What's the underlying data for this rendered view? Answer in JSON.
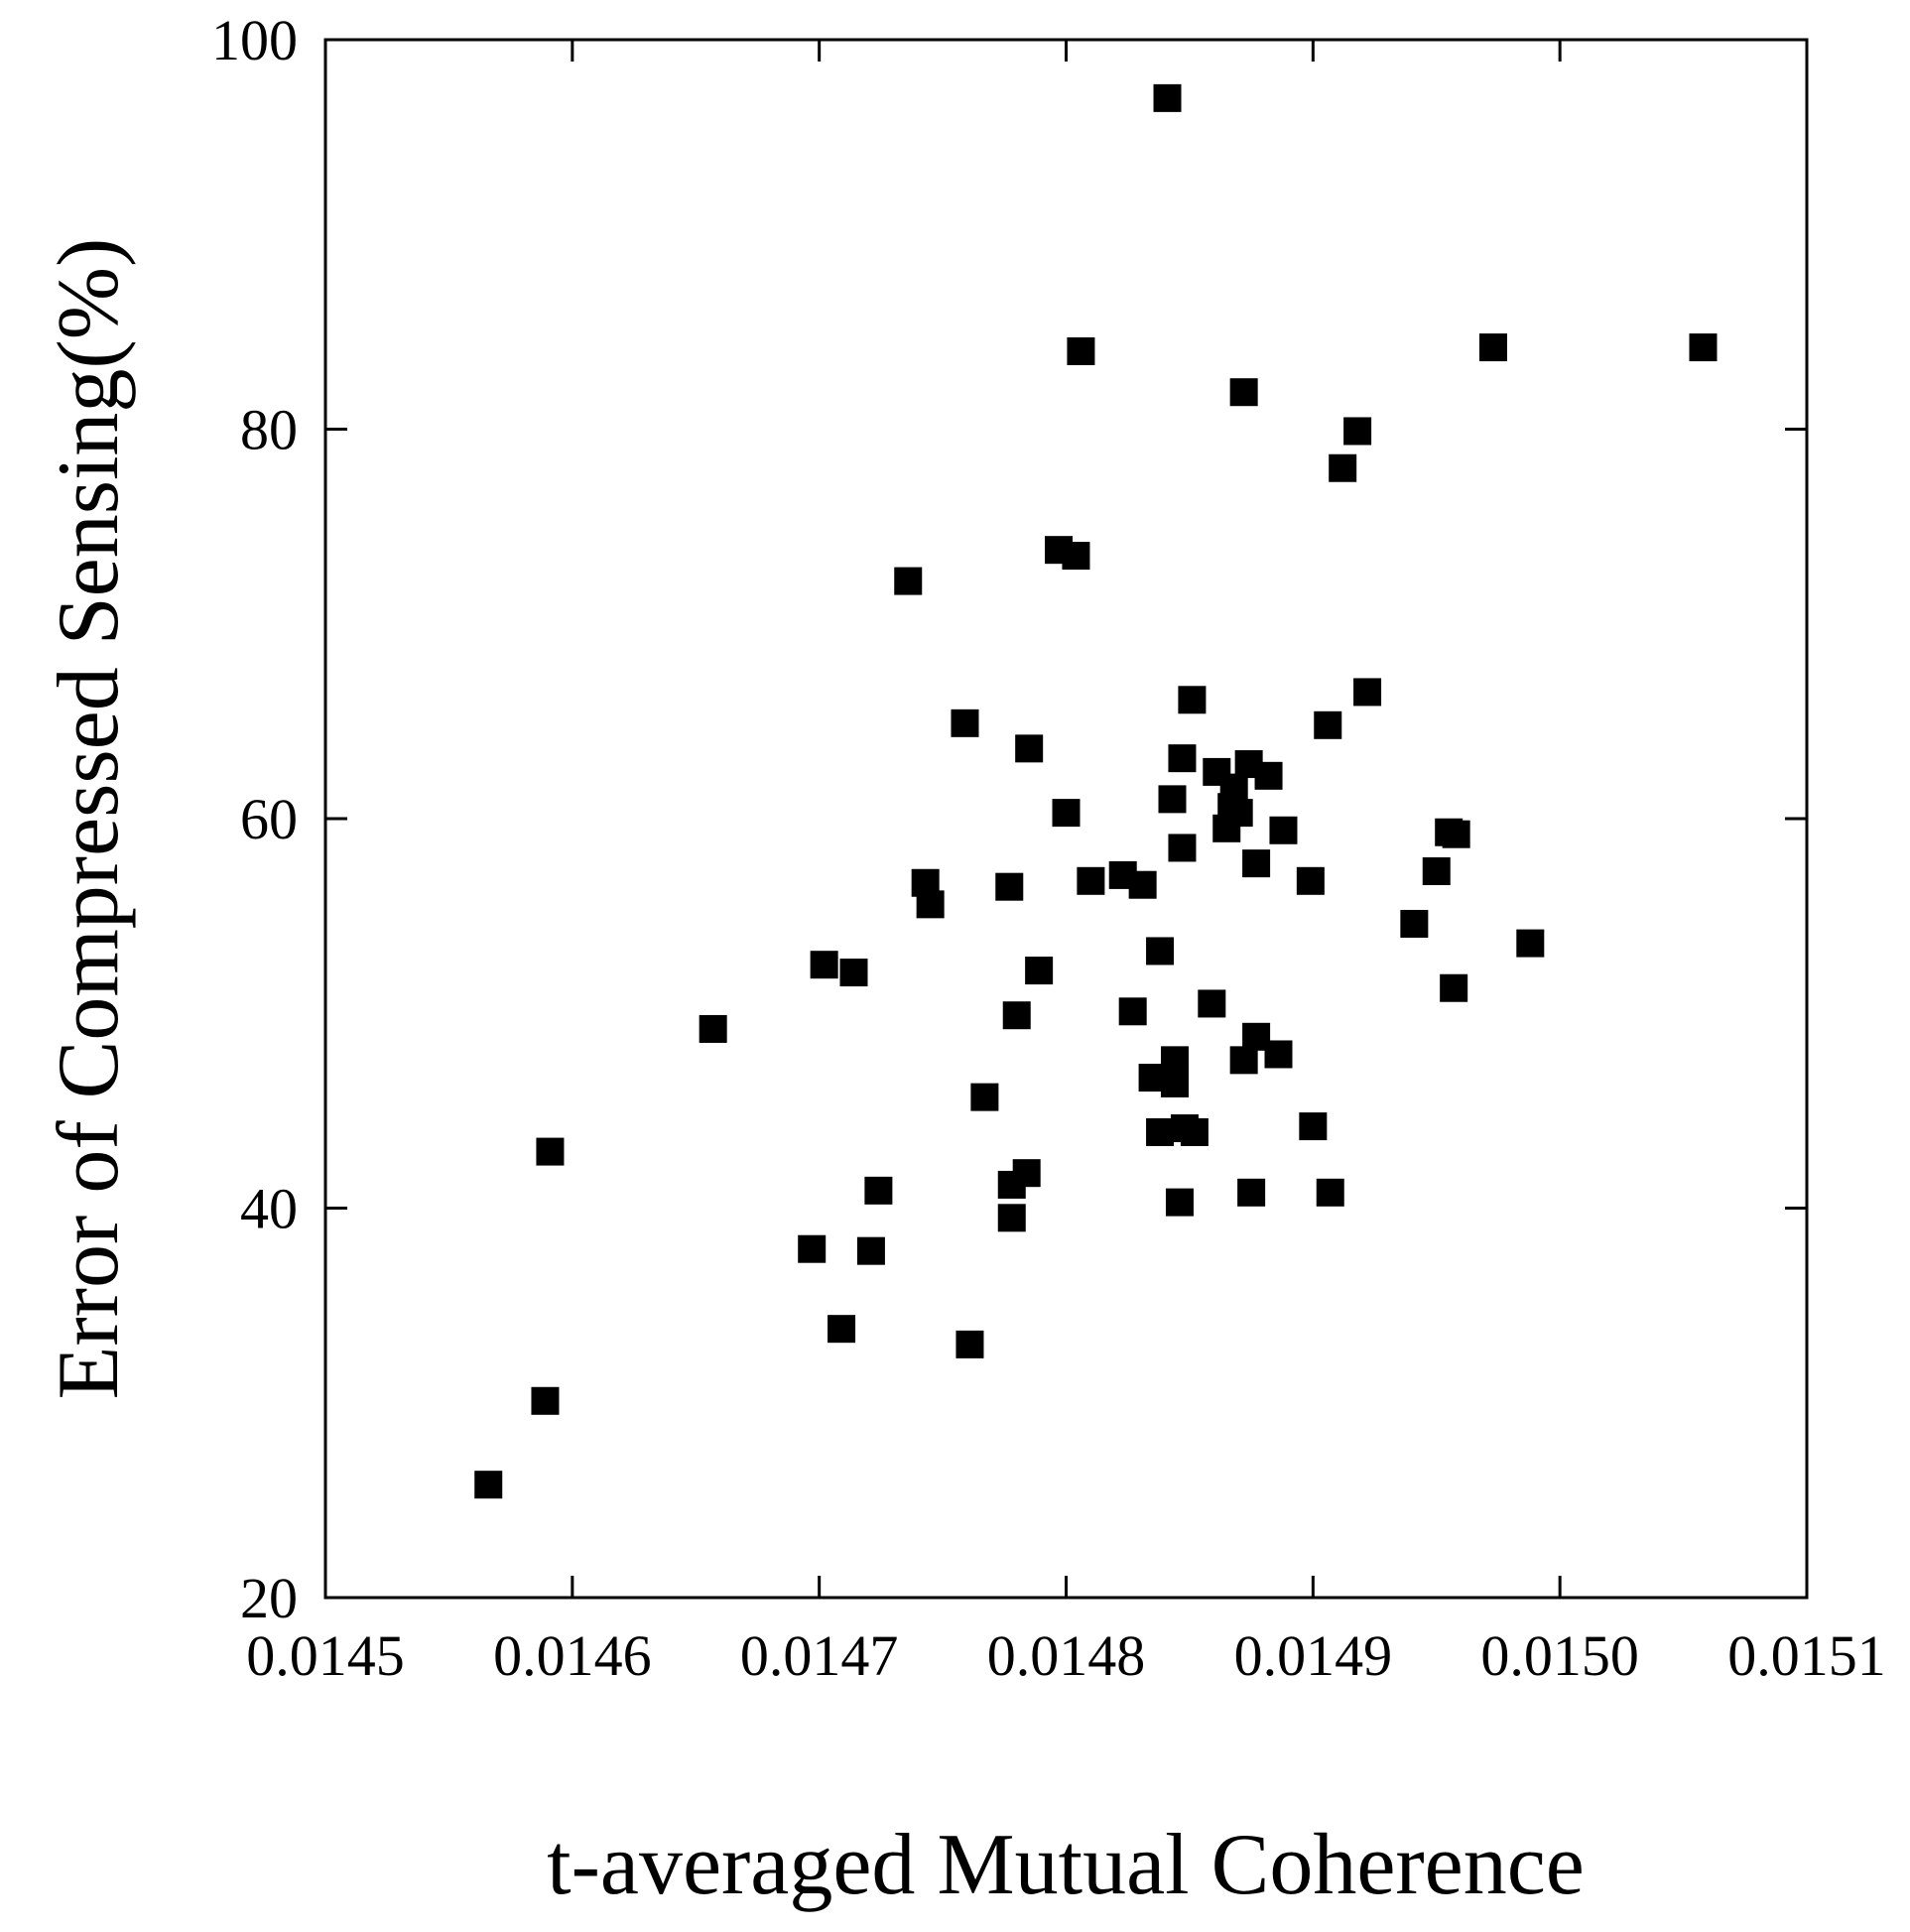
{
  "chart_data": {
    "type": "scatter",
    "xlabel": "t-averaged Mutual Coherence",
    "ylabel": "Error of Compressed Sensing(%)",
    "xlim": [
      0.0145,
      0.0151
    ],
    "ylim": [
      20,
      100
    ],
    "x_ticks": [
      "0.0145",
      "0.0146",
      "0.0147",
      "0.0148",
      "0.0149",
      "0.0150",
      "0.0151"
    ],
    "y_ticks": [
      "20",
      "40",
      "60",
      "80",
      "100"
    ],
    "marker": "square",
    "color": "#000000",
    "grid": false,
    "legend": "none",
    "series": [
      {
        "points": [
          [
            0.014566,
            25.8
          ],
          [
            0.014589,
            30.1
          ],
          [
            0.014591,
            42.9
          ],
          [
            0.014657,
            49.2
          ],
          [
            0.014697,
            37.9
          ],
          [
            0.014702,
            52.5
          ],
          [
            0.014709,
            33.8
          ],
          [
            0.014714,
            52.1
          ],
          [
            0.014721,
            37.8
          ],
          [
            0.014724,
            40.9
          ],
          [
            0.014736,
            72.2
          ],
          [
            0.014743,
            56.7
          ],
          [
            0.014745,
            55.6
          ],
          [
            0.014759,
            64.9
          ],
          [
            0.014761,
            33.0
          ],
          [
            0.014767,
            45.7
          ],
          [
            0.014777,
            56.5
          ],
          [
            0.014778,
            41.2
          ],
          [
            0.014778,
            39.5
          ],
          [
            0.01478,
            49.9
          ],
          [
            0.014784,
            41.8
          ],
          [
            0.014785,
            63.6
          ],
          [
            0.014789,
            52.2
          ],
          [
            0.014797,
            73.8
          ],
          [
            0.0148,
            60.3
          ],
          [
            0.014804,
            73.5
          ],
          [
            0.014806,
            84.0
          ],
          [
            0.01481,
            56.8
          ],
          [
            0.014823,
            57.1
          ],
          [
            0.014827,
            50.1
          ],
          [
            0.014831,
            56.6
          ],
          [
            0.014835,
            46.7
          ],
          [
            0.014838,
            53.2
          ],
          [
            0.014838,
            43.9
          ],
          [
            0.014841,
            97.0
          ],
          [
            0.014843,
            61.0
          ],
          [
            0.014844,
            47.6
          ],
          [
            0.014844,
            46.4
          ],
          [
            0.014846,
            40.3
          ],
          [
            0.014847,
            58.5
          ],
          [
            0.014847,
            63.1
          ],
          [
            0.014848,
            44.1
          ],
          [
            0.014852,
            43.9
          ],
          [
            0.014851,
            66.1
          ],
          [
            0.014859,
            50.5
          ],
          [
            0.014861,
            62.4
          ],
          [
            0.014865,
            59.5
          ],
          [
            0.014867,
            60.6
          ],
          [
            0.014868,
            61.6
          ],
          [
            0.01487,
            60.3
          ],
          [
            0.014872,
            81.9
          ],
          [
            0.014872,
            47.6
          ],
          [
            0.014874,
            62.8
          ],
          [
            0.014875,
            40.8
          ],
          [
            0.014877,
            57.7
          ],
          [
            0.014877,
            48.8
          ],
          [
            0.014882,
            62.2
          ],
          [
            0.014886,
            47.9
          ],
          [
            0.014888,
            59.4
          ],
          [
            0.014899,
            56.8
          ],
          [
            0.0149,
            44.2
          ],
          [
            0.014906,
            64.8
          ],
          [
            0.014907,
            40.8
          ],
          [
            0.014912,
            78.0
          ],
          [
            0.014918,
            79.9
          ],
          [
            0.014922,
            66.5
          ],
          [
            0.014941,
            54.6
          ],
          [
            0.01495,
            57.3
          ],
          [
            0.014955,
            59.3
          ],
          [
            0.014957,
            51.3
          ],
          [
            0.014958,
            59.2
          ],
          [
            0.014973,
            84.2
          ],
          [
            0.014988,
            53.6
          ],
          [
            0.015058,
            84.2
          ]
        ]
      }
    ]
  }
}
